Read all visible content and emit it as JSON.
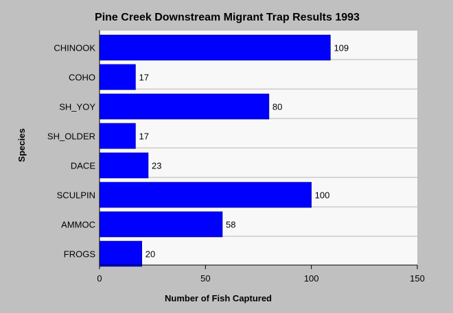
{
  "chart_data": {
    "type": "bar",
    "orientation": "horizontal",
    "title": "Pine Creek Downstream Migrant Trap Results 1993",
    "xlabel": "Number of Fish Captured",
    "ylabel": "Species",
    "categories": [
      "CHINOOK",
      "COHO",
      "SH_YOY",
      "SH_OLDER",
      "DACE",
      "SCULPIN",
      "AMMOC",
      "FROGS"
    ],
    "values": [
      109,
      17,
      80,
      17,
      23,
      100,
      58,
      20
    ],
    "data_labels": [
      "109",
      "17",
      "80",
      "17",
      "23",
      "100",
      "58",
      "20"
    ],
    "xlim": [
      0,
      150
    ],
    "xticks": [
      0,
      50,
      100,
      150
    ],
    "xtick_labels": [
      "0",
      "50",
      "100",
      "150"
    ],
    "grid": "horizontal",
    "legend": "none",
    "colors": {
      "bar": "#0000ff",
      "plot_background": "#f8f8f8",
      "page_background": "#c0c0c0",
      "gridline": "#b4b4b4",
      "axis": "#000000"
    }
  }
}
